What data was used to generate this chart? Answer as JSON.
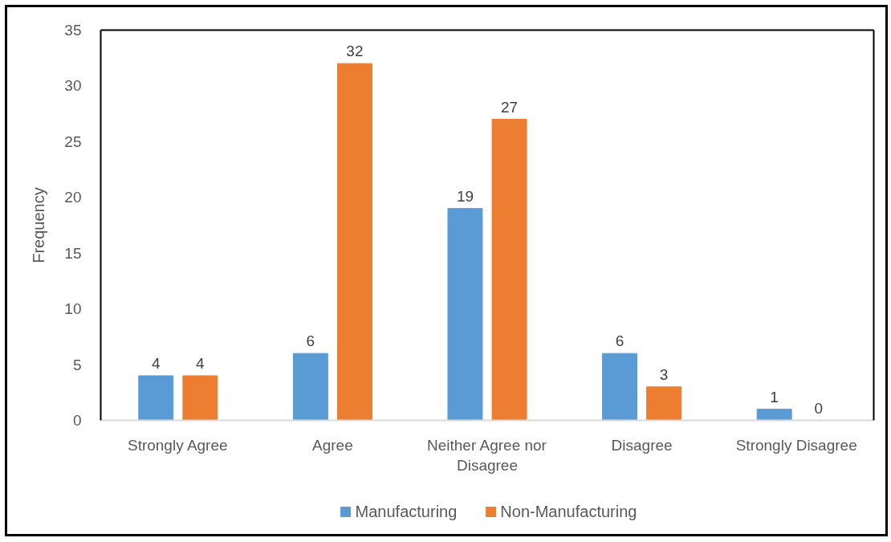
{
  "chart_data": {
    "type": "bar",
    "ylabel": "Frequency",
    "categories": [
      "Strongly Agree",
      "Agree",
      "Neither Agree nor Disagree",
      "Disagree",
      "Strongly Disagree"
    ],
    "series": [
      {
        "name": "Manufacturing",
        "color": "#5b9bd5",
        "values": [
          4,
          6,
          19,
          6,
          1
        ]
      },
      {
        "name": "Non-Manufacturing",
        "color": "#ed7d31",
        "values": [
          4,
          32,
          27,
          3,
          0
        ]
      }
    ],
    "ylim": [
      0,
      35
    ],
    "yticks": [
      0,
      5,
      10,
      15,
      20,
      25,
      30,
      35
    ],
    "legend": "bottom",
    "data_labels": true
  }
}
